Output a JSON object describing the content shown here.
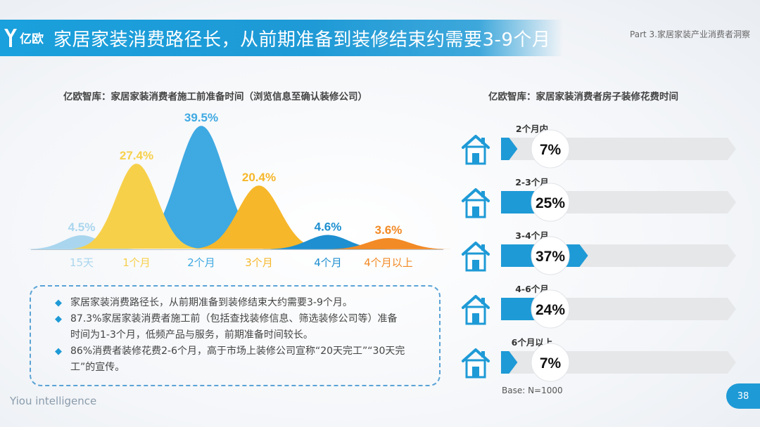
{
  "header": {
    "logo_text": "亿欧",
    "title": "家居家装消费路径长，从前期准备到装修结束约需要3-9个月",
    "section": "Part 3.家居家装产业消费者洞察"
  },
  "footer": {
    "brand": "Yiou intelligence",
    "base_note": "Base: N=1000",
    "page_number": "38"
  },
  "summary": {
    "bullets": [
      "家居家装消费路径长，从前期准备到装修结束大约需要3-9个月。",
      "87.3%家居家装消费者施工前（包括查找装修信息、筛选装修公司等）准备时间为1-3个月，低频产品与服务，前期准备时间较长。",
      "86%消费者装修花费2-6个月，高于市场上装修公司宣称“20天完工”“30天完工”的宣传。"
    ]
  },
  "chart_data": [
    {
      "type": "area",
      "title": "亿欧智库：家居家装消费者施工前准备时间（浏览信息至确认装修公司）",
      "categories": [
        "15天",
        "1个月",
        "2个月",
        "3个月",
        "4个月",
        "4个月以上"
      ],
      "values": [
        4.5,
        27.4,
        39.5,
        20.4,
        4.6,
        3.6
      ],
      "value_labels": [
        "4.5%",
        "27.4%",
        "39.5%",
        "20.4%",
        "4.6%",
        "3.6%"
      ],
      "colors": [
        "#a9d6ee",
        "#f7d04a",
        "#3fa9e2",
        "#f6b72a",
        "#1e8fd0",
        "#f28a26"
      ],
      "unit": "%",
      "grid": false,
      "legend": "none"
    },
    {
      "type": "bar",
      "title": "亿欧智库：家居家装消费者房子装修花费时间",
      "categories": [
        "2个月内",
        "2-3个月",
        "3-4个月",
        "4-6个月",
        "6个月以上"
      ],
      "values": [
        7,
        25,
        37,
        24,
        7
      ],
      "value_labels": [
        "7%",
        "25%",
        "37%",
        "24%",
        "7%"
      ],
      "xlim": [
        0,
        100
      ],
      "bar_color": "#1e9ad6",
      "track_color": "#e6e7e9",
      "icon": "house-icon",
      "unit": "%",
      "grid": false,
      "legend": "none"
    }
  ]
}
